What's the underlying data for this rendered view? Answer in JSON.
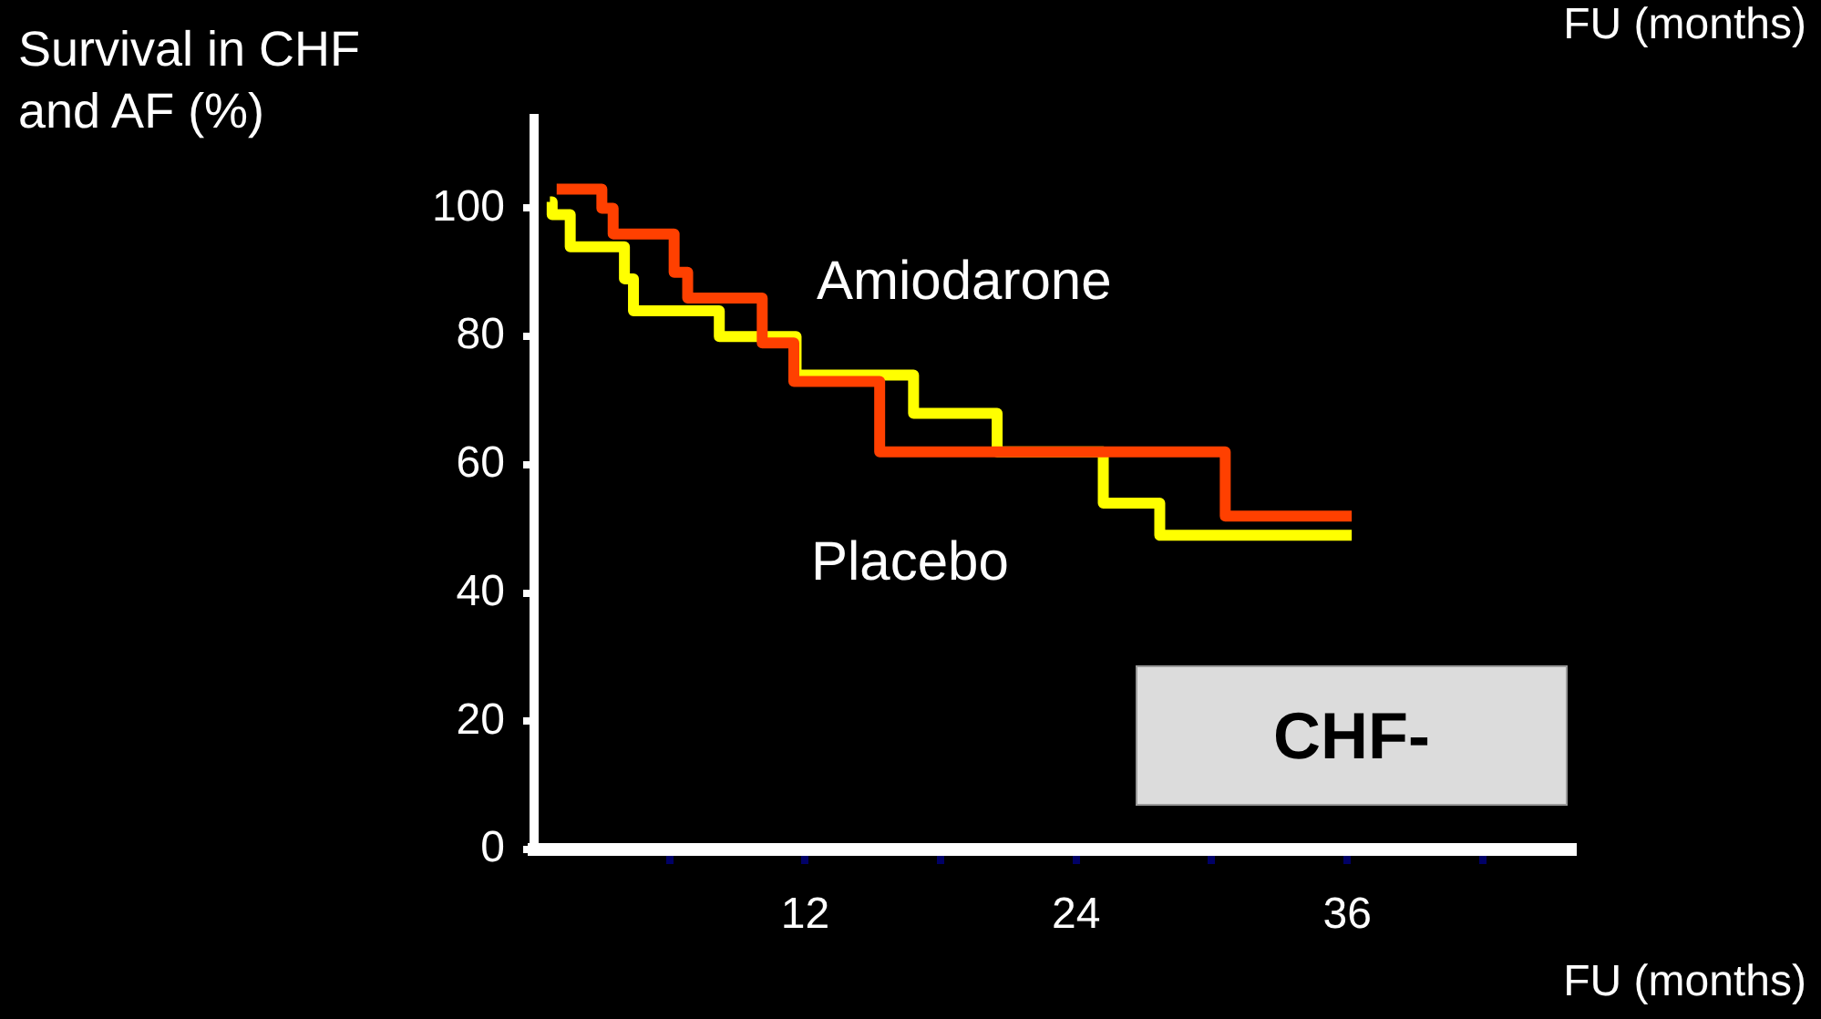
{
  "chart_data": {
    "type": "step",
    "ylabel": "Survival in CHF\nand AF (%)",
    "xlabel": "FU (months)",
    "xlim": [
      0,
      46
    ],
    "xticks": [
      {
        "value": 6,
        "label": null
      },
      12,
      {
        "value": 18,
        "label": null
      },
      24,
      {
        "value": 30,
        "label": null
      },
      36,
      {
        "value": 42,
        "label": null
      }
    ],
    "ylim": [
      0,
      114
    ],
    "yticks": [
      0,
      20,
      40,
      60,
      80,
      100
    ],
    "series": [
      {
        "name": "Amiodarone",
        "color": "#ff4000",
        "x": [
          1.0,
          3.0,
          3.5,
          6.2,
          6.8,
          10.1,
          11.5,
          15.3,
          30.6,
          36.2
        ],
        "values": [
          103,
          100,
          96,
          90,
          86,
          79,
          73,
          62,
          52,
          52
        ]
      },
      {
        "name": "Placebo",
        "color": "#ffff00",
        "x": [
          0.7,
          0.8,
          1.6,
          4.0,
          4.4,
          8.2,
          11.6,
          16.8,
          20.5,
          25.2,
          27.7,
          36.2
        ],
        "values": [
          101,
          99,
          94,
          89,
          84,
          80,
          74,
          68,
          62,
          54,
          49,
          49
        ]
      }
    ],
    "annotations": [
      "FU (months)",
      "CHF-"
    ],
    "grid": false,
    "legend": false,
    "marker": "none",
    "line_style": "solid"
  }
}
